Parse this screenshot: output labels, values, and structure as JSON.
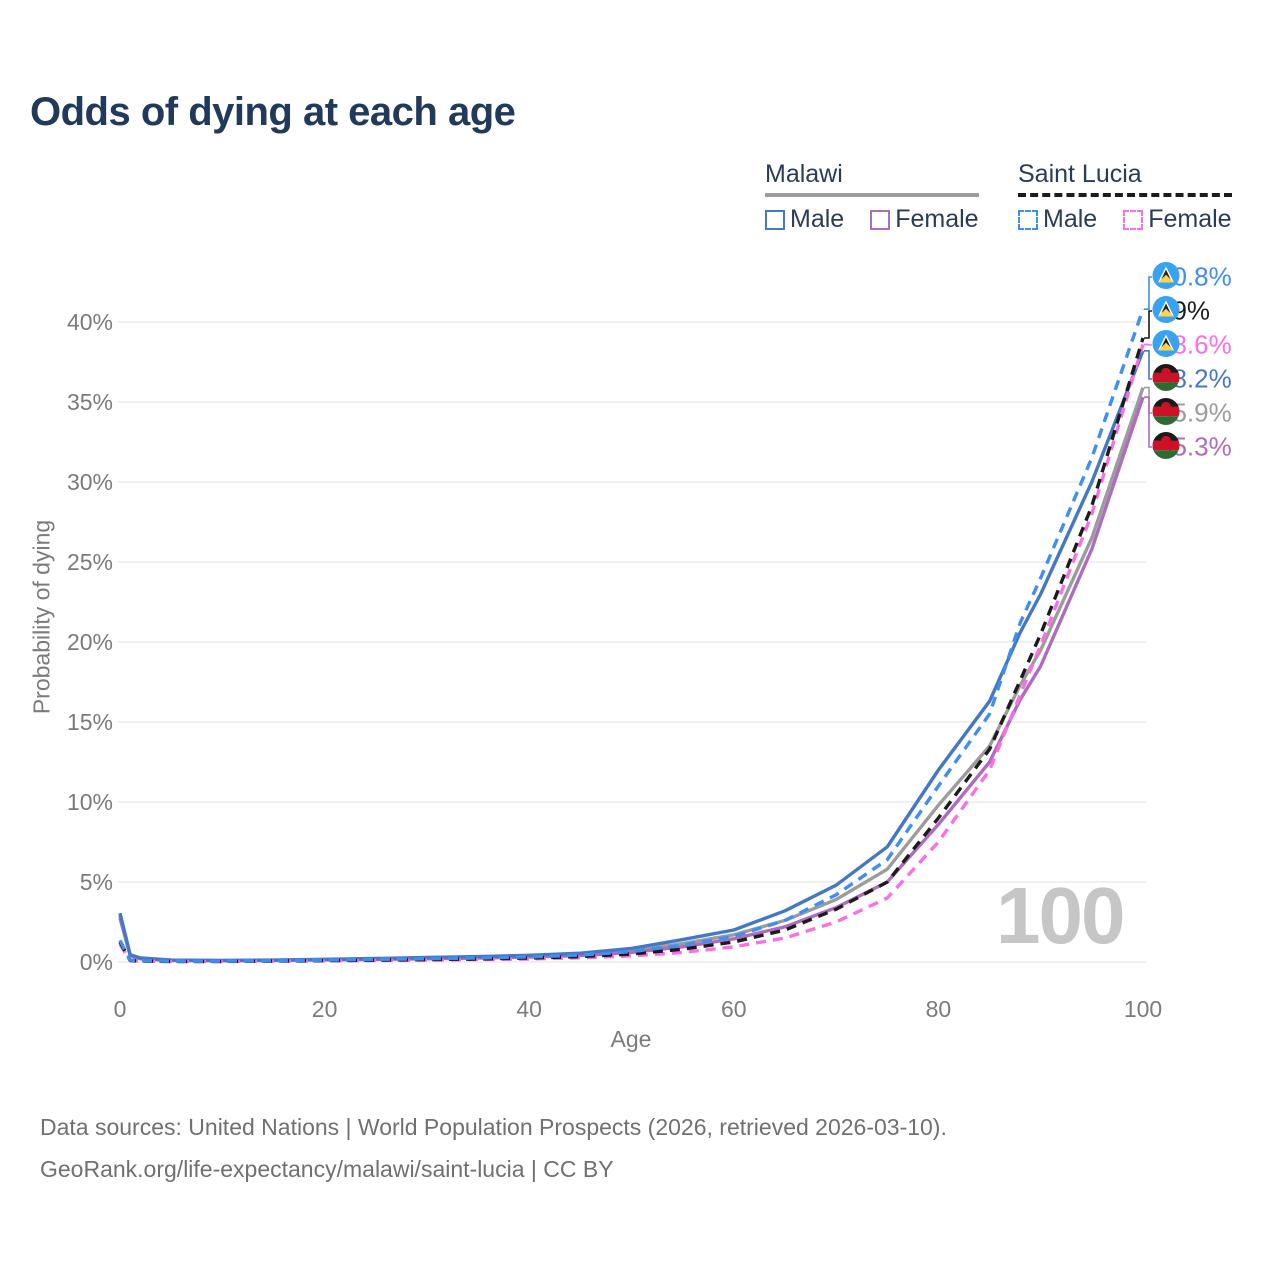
{
  "title": "Odds of dying at each age",
  "watermark": "100",
  "legend": {
    "groups": [
      {
        "label": "Malawi",
        "underline_style": "solid",
        "underline_color": "#9c9c9c",
        "items": [
          {
            "label": "Male",
            "color": "#4478c4",
            "style": "solid"
          },
          {
            "label": "Female",
            "color": "#ae6cbe",
            "style": "solid"
          }
        ]
      },
      {
        "label": "Saint Lucia",
        "underline_style": "dashed",
        "underline_color": "#1c1c1c",
        "items": [
          {
            "label": "Male",
            "color": "#3f8ef3",
            "style": "dashed"
          },
          {
            "label": "Female",
            "color": "#fc6ee5",
            "style": "dashed"
          }
        ]
      }
    ]
  },
  "footer": {
    "line1": "Data sources: United Nations | World Population Prospects (2026, retrieved 2026-03-10).",
    "line2": "GeoRank.org/life-expectancy/malawi/saint-lucia | CC BY"
  },
  "chart_data": {
    "type": "line",
    "title": "Odds of dying at each age",
    "xlabel": "Age",
    "ylabel": "Probability of dying",
    "xlim": [
      0,
      100
    ],
    "ylim": [
      0,
      42
    ],
    "grid": "horizontal",
    "legend_position": "top-right",
    "x_ticks": [
      0,
      20,
      40,
      60,
      80,
      100
    ],
    "y_ticks": [
      "0%",
      "5%",
      "10%",
      "15%",
      "20%",
      "25%",
      "30%",
      "35%",
      "40%"
    ],
    "x": [
      0,
      1,
      2,
      5,
      10,
      15,
      20,
      25,
      30,
      35,
      40,
      45,
      50,
      55,
      60,
      65,
      70,
      75,
      80,
      85,
      88,
      90,
      95,
      100
    ],
    "series": [
      {
        "name": "Malawi total",
        "country": "Malawi",
        "sex": "both",
        "color": "#9c9c9c",
        "dash": "solid",
        "flag": "malawi",
        "end_label": "35.9%",
        "label_order": 4,
        "values": [
          2.9,
          0.42,
          0.22,
          0.11,
          0.09,
          0.11,
          0.15,
          0.19,
          0.24,
          0.29,
          0.36,
          0.47,
          0.7,
          1.15,
          1.7,
          2.6,
          3.9,
          5.8,
          9.8,
          13.5,
          17.3,
          19.5,
          26.5,
          35.9
        ]
      },
      {
        "name": "Malawi female",
        "country": "Malawi",
        "sex": "female",
        "color": "#ae6cbe",
        "dash": "solid",
        "flag": "malawi",
        "end_label": "35.3%",
        "label_order": 5,
        "values": [
          2.75,
          0.4,
          0.2,
          0.1,
          0.08,
          0.1,
          0.13,
          0.16,
          0.2,
          0.25,
          0.31,
          0.4,
          0.6,
          0.95,
          1.45,
          2.2,
          3.4,
          5.0,
          8.6,
          12.5,
          16.4,
          18.5,
          25.8,
          35.3
        ]
      },
      {
        "name": "Malawi male",
        "country": "Malawi",
        "sex": "male",
        "color": "#4478c4",
        "dash": "solid",
        "flag": "malawi",
        "end_label": "38.2%",
        "label_order": 3,
        "values": [
          3.05,
          0.45,
          0.25,
          0.12,
          0.1,
          0.12,
          0.17,
          0.22,
          0.28,
          0.34,
          0.42,
          0.55,
          0.85,
          1.4,
          2.0,
          3.2,
          4.8,
          7.2,
          12.0,
          16.3,
          20.6,
          23.0,
          30.0,
          38.2
        ]
      },
      {
        "name": "Saint Lucia female",
        "country": "Saint Lucia",
        "sex": "female",
        "color": "#fc6ee5",
        "dash": "dashed",
        "flag": "saint-lucia",
        "end_label": "38.6%",
        "label_order": 2,
        "values": [
          1.1,
          0.08,
          0.05,
          0.03,
          0.03,
          0.05,
          0.07,
          0.09,
          0.12,
          0.15,
          0.19,
          0.26,
          0.38,
          0.6,
          0.95,
          1.5,
          2.5,
          4.0,
          7.5,
          12.0,
          16.7,
          19.8,
          28.0,
          38.6
        ]
      },
      {
        "name": "Saint Lucia total",
        "country": "Saint Lucia",
        "sex": "both",
        "color": "#1c1c1c",
        "dash": "dashed",
        "flag": "saint-lucia",
        "end_label": "39%",
        "label_order": 1,
        "values": [
          1.25,
          0.1,
          0.06,
          0.04,
          0.04,
          0.06,
          0.09,
          0.12,
          0.15,
          0.19,
          0.25,
          0.34,
          0.5,
          0.8,
          1.25,
          2.0,
          3.3,
          5.0,
          9.0,
          13.3,
          17.6,
          20.5,
          28.5,
          39.0
        ]
      },
      {
        "name": "Saint Lucia male",
        "country": "Saint Lucia",
        "sex": "male",
        "color": "#3f8ef3",
        "dash": "dashed",
        "flag": "saint-lucia",
        "end_label": "40.8%",
        "label_order": 0,
        "values": [
          1.35,
          0.12,
          0.08,
          0.05,
          0.05,
          0.08,
          0.12,
          0.16,
          0.2,
          0.25,
          0.32,
          0.43,
          0.65,
          1.05,
          1.6,
          2.6,
          4.2,
          6.4,
          11.0,
          15.5,
          21.2,
          24.0,
          31.5,
          40.8
        ]
      }
    ]
  }
}
